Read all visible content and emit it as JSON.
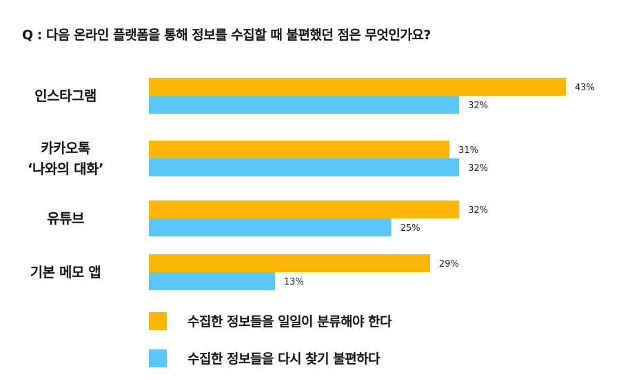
{
  "question": "Q : 다음 온라인 플랫폼을 통해 정보를 수집할 때 불편했던 점은 무엇인가요?",
  "colors": {
    "series1": "#FDB704",
    "series2": "#5DC6F8"
  },
  "chart_data": {
    "type": "bar",
    "orientation": "horizontal",
    "categories": [
      [
        "인스타그램"
      ],
      [
        "카카오톡",
        "‘나와의 대화’"
      ],
      [
        "유튜브"
      ],
      [
        "기본 메모 앱"
      ]
    ],
    "series": [
      {
        "name": "수집한 정보들을 일일이 분류해야 한다",
        "values": [
          43,
          31,
          32,
          29
        ],
        "labels": [
          "43%",
          "31%",
          "32%",
          "29%"
        ]
      },
      {
        "name": "수집한 정보들을 다시 찾기 불편하다",
        "values": [
          32,
          32,
          25,
          13
        ],
        "labels": [
          "32%",
          "32%",
          "25%",
          "13%"
        ]
      }
    ],
    "xlim": [
      0,
      43
    ],
    "grid": false,
    "legend": "bottom"
  },
  "legend": [
    {
      "label": "수집한 정보들을 일일이 분류해야 한다"
    },
    {
      "label": "수집한 정보들을 다시 찾기 불편하다"
    }
  ]
}
